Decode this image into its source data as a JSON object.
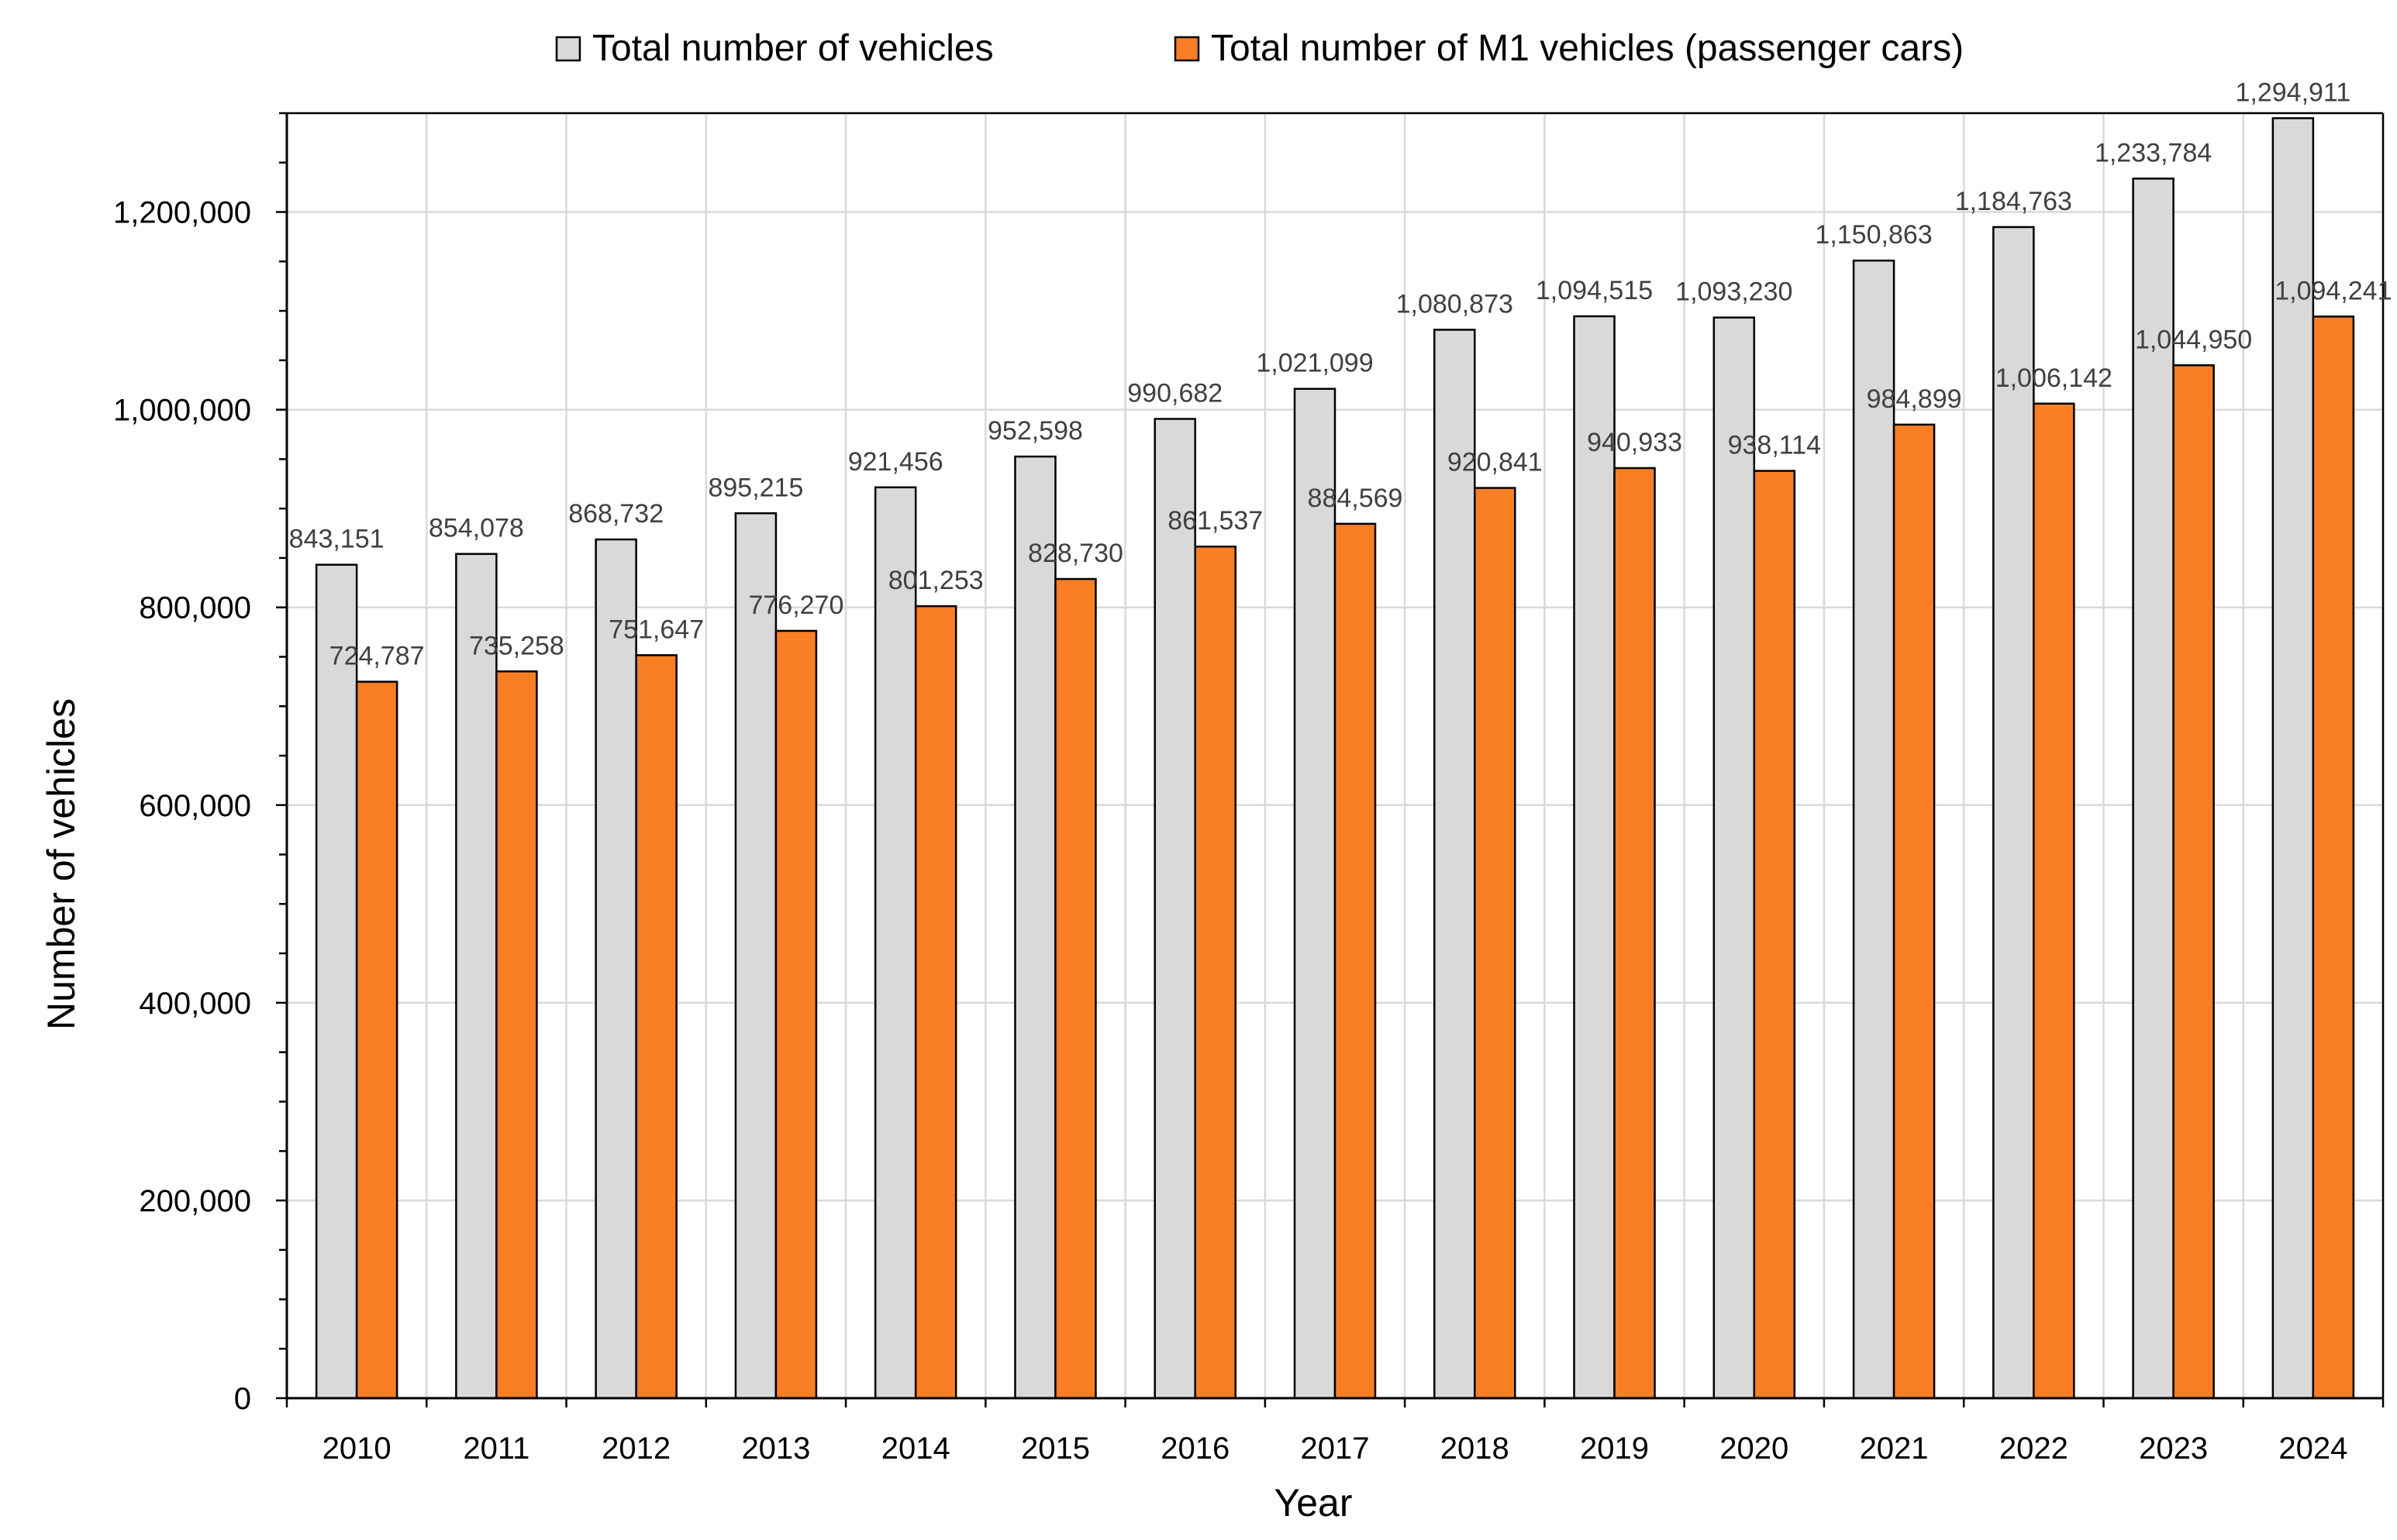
{
  "chart_data": {
    "type": "bar",
    "title": "",
    "xlabel": "Year",
    "ylabel": "Number of vehicles",
    "ylim": [
      0,
      1300000
    ],
    "yticks": [
      0,
      200000,
      400000,
      600000,
      800000,
      1000000,
      1200000
    ],
    "ytick_labels": [
      "0",
      "200,000",
      "400,000",
      "600,000",
      "800,000",
      "1,000,000",
      "1,200,000"
    ],
    "grid": true,
    "legend_position": "top",
    "categories": [
      "2010",
      "2011",
      "2012",
      "2013",
      "2014",
      "2015",
      "2016",
      "2017",
      "2018",
      "2019",
      "2020",
      "2021",
      "2022",
      "2023",
      "2024"
    ],
    "series": [
      {
        "name": "Total number of vehicles",
        "color": "#d9d9d9",
        "values": [
          843151,
          854078,
          868732,
          895215,
          921456,
          952598,
          990682,
          1021099,
          1080873,
          1094515,
          1093230,
          1150863,
          1184763,
          1233784,
          1294911
        ],
        "labels": [
          "843,151",
          "854,078",
          "868,732",
          "895,215",
          "921,456",
          "952,598",
          "990,682",
          "1,021,099",
          "1,080,873",
          "1,094,515",
          "1,093,230",
          "1,150,863",
          "1,184,763",
          "1,233,784",
          "1,294,911"
        ]
      },
      {
        "name": "Total number of M1 vehicles (passenger cars)",
        "color": "#f97e24",
        "values": [
          724787,
          735258,
          751647,
          776270,
          801253,
          828730,
          861537,
          884569,
          920841,
          940933,
          938114,
          984899,
          1006142,
          1044950,
          1094241
        ],
        "labels": [
          "724,787",
          "735,258",
          "751,647",
          "776,270",
          "801,253",
          "828,730",
          "861,537",
          "884,569",
          "920,841",
          "940,933",
          "938,114",
          "984,899",
          "1,006,142",
          "1,044,950",
          "1,094,241"
        ]
      }
    ]
  }
}
